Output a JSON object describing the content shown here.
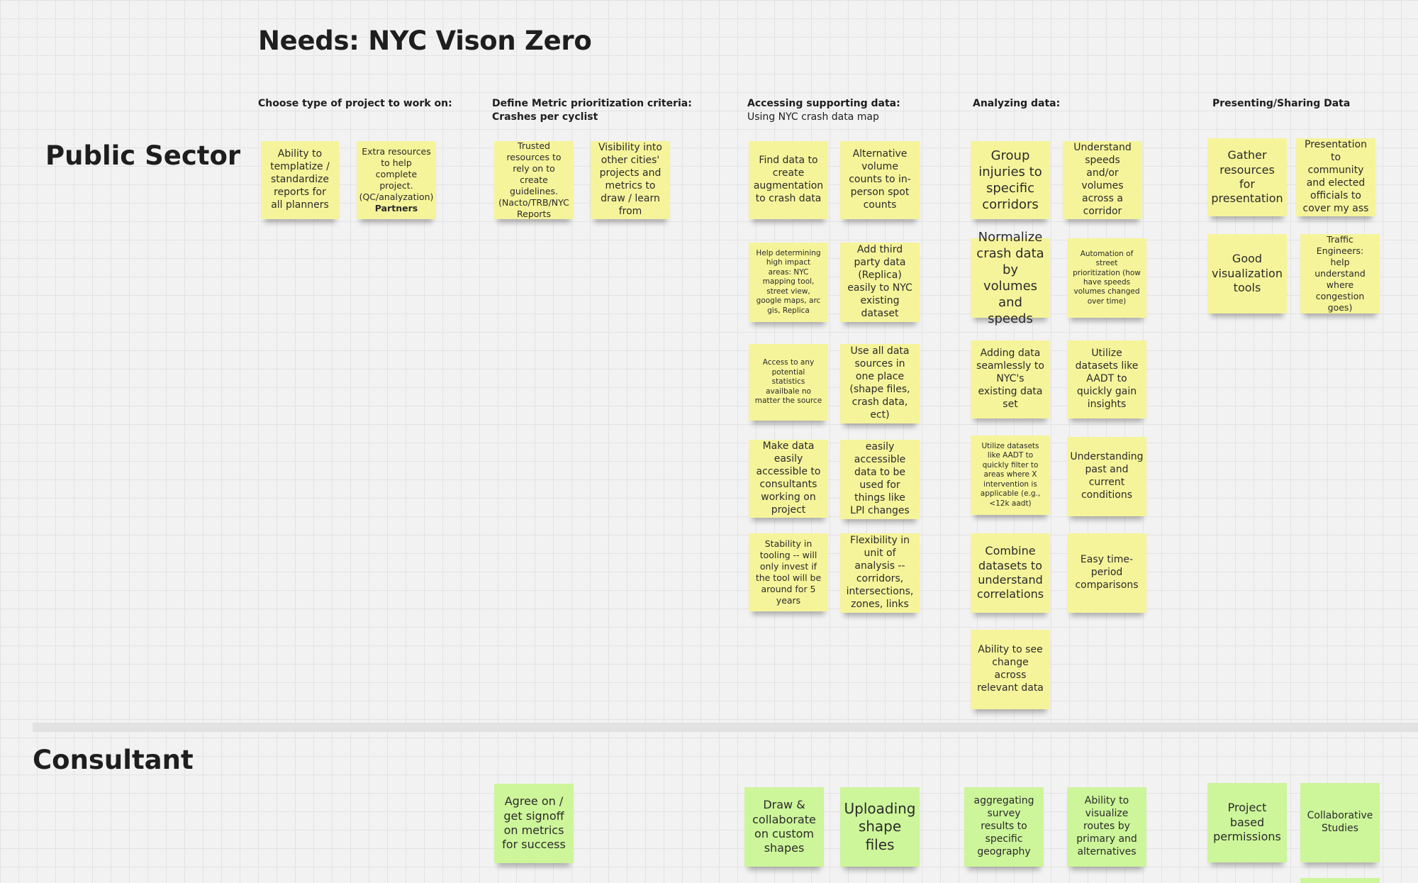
{
  "board": {
    "title": "Needs: NYC Vison Zero"
  },
  "lanes": {
    "public": "Public Sector",
    "consultant": "Consultant"
  },
  "columns": {
    "choose": {
      "title": "Choose type of project to work on:"
    },
    "define": {
      "title": "Define Metric prioritization criteria:",
      "subtitle": "Crashes per cyclist"
    },
    "access": {
      "title": "Accessing supporting data:",
      "subtitle": "Using NYC crash data map"
    },
    "analyze": {
      "title": "Analyzing data:"
    },
    "present": {
      "title": "Presenting/Sharing Data"
    }
  },
  "notes": {
    "p1": "Ability to templatize / standardize reports for all planners",
    "p2": "Extra resources to help complete project. (QC/analyzation)",
    "p2_bold": "Partners",
    "p3": "Trusted resources to rely on to create guidelines. (Nacto/TRB/NYC Reports",
    "p4": "Visibility into other cities' projects and metrics to draw / learn from",
    "a1": "Find data to create augmentation to crash data",
    "a2": "Alternative volume counts to in-person spot counts",
    "a3": "Help determining high impact areas: NYC mapping tool, street view, google maps, arc gis, Replica",
    "a4": "Add third party data (Replica) easily to NYC existing dataset",
    "a5": "Access to any potential statistics availbale no matter the source",
    "a6": "Use all data sources in one place (shape files, crash data, ect)",
    "a7": "Make data easily accessible to consultants working on project",
    "a8": "easily accessible data to be used for things like LPI changes",
    "a9": "Stability in tooling -- will only invest if the tool will be around for 5 years",
    "a10": "Flexibility in unit of analysis -- corridors, intersections, zones, links",
    "n1": "Group injuries to specific corridors",
    "n2": "Understand speeds and/or volumes across a corridor",
    "n3": "Normalize crash data by volumes and speeds",
    "n4": "Automation of street prioritization (how have speeds volumes changed over time)",
    "n5": "Adding data seamlessly to NYC's existing data set",
    "n6": "Utilize datasets like AADT to quickly gain insights",
    "n7": "Utilize datasets like AADT to quickly filter to areas where X intervention is applicable (e.g., <12k aadt)",
    "n8": "Understanding past and current conditions",
    "n9": "Combine datasets to understand correlations",
    "n10": "Easy time-period comparisons",
    "n11": "Ability to see change across relevant data",
    "s1": "Gather resources for presentation",
    "s2": "Presentation to community and elected officials to cover my ass",
    "s3": "Good visualization tools",
    "s4": "Traffic Engineers: help understand where congestion goes)",
    "c1": "Agree on / get signoff on metrics for success",
    "c2": "Draw & collaborate on custom shapes",
    "c3": "Uploading shape files",
    "c4": "aggregating survey results to specific geography",
    "c5": "Ability to visualize routes by primary and alternatives",
    "c6": "Project based permissions",
    "c7": "Collaborative Studies"
  },
  "colors": {
    "yellow_note": "#f6f49a",
    "green_note": "#cdf59a",
    "canvas": "#f2f2f2"
  }
}
